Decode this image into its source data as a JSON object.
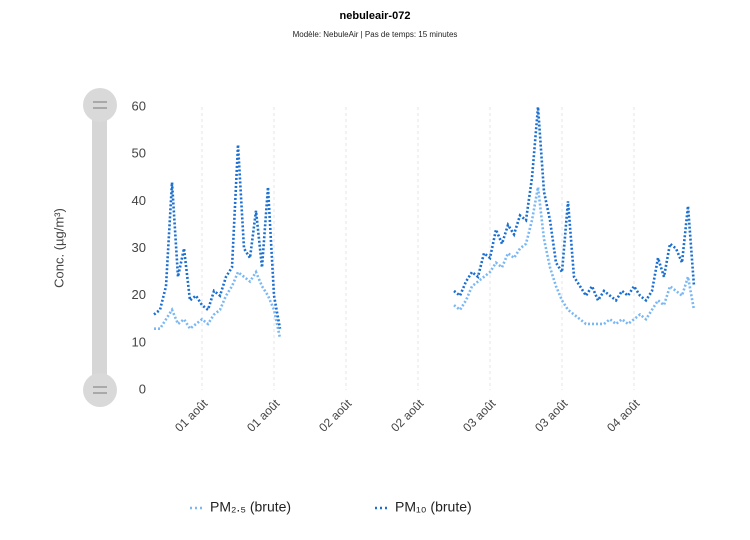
{
  "chart_data": {
    "type": "line",
    "title": "nebuleair-072",
    "subtitle": "Modèle: NebuleAir | Pas de temps: 15 minutes",
    "y_label": "Conc. (µg/m³)",
    "x": [
      1,
      2,
      3,
      4,
      5,
      6,
      7,
      8,
      9,
      10,
      11,
      12,
      13,
      14,
      15,
      16,
      17,
      18,
      19,
      20,
      21,
      22,
      36,
      51,
      52,
      53,
      54,
      55,
      56,
      57,
      58,
      59,
      60,
      61,
      62,
      63,
      64,
      65,
      66,
      67,
      68,
      69,
      70,
      71,
      72,
      73,
      74,
      75,
      76,
      77,
      78,
      79,
      80,
      81,
      82,
      83,
      84,
      85,
      86,
      87,
      88,
      89,
      90,
      91
    ],
    "series": [
      {
        "name": "PM₂.₅ (brute)",
        "color": "#7ab8f5",
        "values": [
          13,
          13,
          15,
          17,
          14,
          15,
          13,
          14,
          15,
          14,
          16,
          17,
          20,
          22,
          25,
          24,
          23,
          25,
          22,
          20,
          17,
          11,
          null,
          18,
          17,
          19,
          22,
          23,
          24,
          25,
          27,
          26,
          29,
          28,
          30,
          31,
          36,
          43,
          32,
          26,
          22,
          19,
          17,
          16,
          15,
          14,
          14,
          14,
          14,
          15,
          14,
          15,
          14,
          15,
          16,
          15,
          17,
          19,
          18,
          22,
          21,
          20,
          24,
          17
        ]
      },
      {
        "name": "PM₁₀ (brute)",
        "color": "#1a6fd1",
        "values": [
          16,
          17,
          22,
          44,
          24,
          30,
          19,
          20,
          18,
          17,
          21,
          20,
          24,
          26,
          52,
          30,
          28,
          38,
          26,
          43,
          20,
          13,
          null,
          21,
          20,
          23,
          25,
          24,
          29,
          28,
          34,
          31,
          35,
          33,
          37,
          36,
          45,
          60,
          42,
          36,
          27,
          25,
          40,
          24,
          22,
          20,
          22,
          19,
          21,
          20,
          19,
          21,
          20,
          22,
          20,
          19,
          21,
          28,
          24,
          31,
          30,
          27,
          39,
          22
        ]
      }
    ],
    "xlim": [
      0,
      92
    ],
    "xticks": [
      {
        "value": 9,
        "label": "01 août"
      },
      {
        "value": 21,
        "label": "01 août"
      },
      {
        "value": 33,
        "label": "02 août"
      },
      {
        "value": 45,
        "label": "02 août"
      },
      {
        "value": 57,
        "label": "03 août"
      },
      {
        "value": 69,
        "label": "03 août"
      },
      {
        "value": 81,
        "label": "04 août"
      }
    ],
    "ylim": [
      0,
      60
    ],
    "yticks": [
      0,
      10,
      20,
      30,
      40,
      50,
      60
    ],
    "grid": "x",
    "legend": "bottom"
  }
}
